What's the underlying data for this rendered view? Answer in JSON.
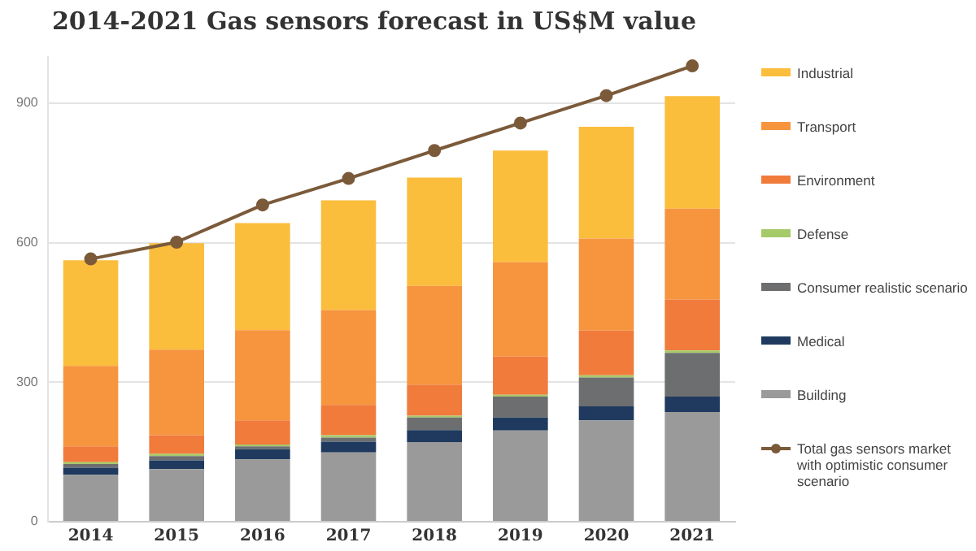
{
  "chart_data": {
    "type": "bar",
    "title": "2014-2021 Gas sensors forecast in US$M value",
    "stacked": true,
    "categories": [
      "2014",
      "2015",
      "2016",
      "2017",
      "2018",
      "2019",
      "2020",
      "2021"
    ],
    "series": [
      {
        "name": "Building",
        "color": "#9a9a9a",
        "values": [
          101,
          113,
          134,
          149,
          171,
          196,
          218,
          236
        ]
      },
      {
        "name": "Medical",
        "color": "#1f3a5e",
        "values": [
          15,
          19,
          22,
          23,
          26,
          28,
          30,
          33
        ]
      },
      {
        "name": "Consumer realistic scenario",
        "color": "#6d6e70",
        "values": [
          8,
          9,
          6,
          9,
          27,
          45,
          62,
          94
        ]
      },
      {
        "name": "Defense",
        "color": "#a6c96a",
        "values": [
          4,
          5,
          4,
          5,
          4,
          4,
          5,
          5
        ]
      },
      {
        "name": "Environment",
        "color": "#f07b3b",
        "values": [
          34,
          40,
          52,
          65,
          67,
          82,
          96,
          110
        ]
      },
      {
        "name": "Transport",
        "color": "#f6953e",
        "values": [
          173,
          184,
          194,
          204,
          212,
          203,
          198,
          195
        ]
      },
      {
        "name": "Industrial",
        "color": "#fbbd3c",
        "values": [
          227,
          229,
          230,
          236,
          233,
          240,
          240,
          242
        ]
      },
      {
        "name": "Total gas sensors market with optimistic consumer scenario",
        "type": "line",
        "color": "#7b5a3a",
        "values": [
          565,
          601,
          681,
          738,
          798,
          857,
          916,
          980
        ]
      }
    ],
    "ylim": [
      0,
      1000
    ],
    "yticks": [
      0,
      300,
      600,
      900
    ],
    "grid": "y",
    "legend": "right",
    "marker": "circle"
  }
}
